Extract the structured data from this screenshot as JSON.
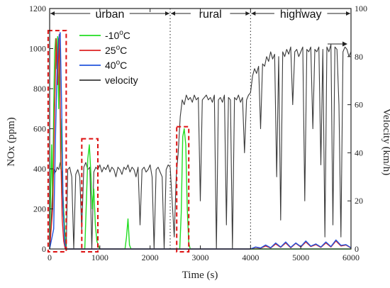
{
  "chart_data": {
    "type": "line",
    "x_axis": {
      "label": "Time (s)",
      "range": [
        0,
        6000
      ],
      "ticks": [
        0,
        1000,
        2000,
        3000,
        4000,
        5000,
        6000
      ]
    },
    "y_axis_left": {
      "label": "NOx (ppm)",
      "range": [
        0,
        1200
      ],
      "ticks": [
        0,
        200,
        400,
        600,
        800,
        1000,
        1200
      ]
    },
    "y_axis_right": {
      "label": "Velocity (km/h)",
      "range": [
        0,
        100
      ],
      "ticks": [
        0,
        20,
        40,
        60,
        80,
        100
      ]
    },
    "grid": false,
    "legend_position": "top-left",
    "segments": [
      {
        "label": "urban",
        "start": 0,
        "end": 2400
      },
      {
        "label": "rural",
        "start": 2400,
        "end": 4000
      },
      {
        "label": "highway",
        "start": 4000,
        "end": 6000
      }
    ],
    "highlight_boxes": [
      {
        "x": [
          -30,
          330
        ],
        "y": [
          0,
          1090
        ]
      },
      {
        "x": [
          640,
          960
        ],
        "y": [
          0,
          550
        ]
      },
      {
        "x": [
          2530,
          2770
        ],
        "y": [
          0,
          610
        ]
      }
    ],
    "series": [
      {
        "name": "-10oC",
        "color": "#22dd22",
        "axis": "left",
        "points": [
          [
            0,
            0
          ],
          [
            20,
            300
          ],
          [
            40,
            520
          ],
          [
            60,
            200
          ],
          [
            80,
            700
          ],
          [
            100,
            980
          ],
          [
            120,
            1050
          ],
          [
            140,
            900
          ],
          [
            160,
            1060
          ],
          [
            180,
            700
          ],
          [
            200,
            1000
          ],
          [
            220,
            400
          ],
          [
            240,
            650
          ],
          [
            260,
            300
          ],
          [
            280,
            200
          ],
          [
            300,
            100
          ],
          [
            320,
            20
          ],
          [
            340,
            0
          ],
          [
            700,
            0
          ],
          [
            720,
            150
          ],
          [
            760,
            450
          ],
          [
            790,
            520
          ],
          [
            820,
            380
          ],
          [
            850,
            200
          ],
          [
            880,
            300
          ],
          [
            910,
            120
          ],
          [
            940,
            40
          ],
          [
            980,
            10
          ],
          [
            1000,
            0
          ],
          [
            1500,
            0
          ],
          [
            1530,
            60
          ],
          [
            1560,
            150
          ],
          [
            1590,
            20
          ],
          [
            1620,
            0
          ],
          [
            2590,
            0
          ],
          [
            2620,
            180
          ],
          [
            2650,
            560
          ],
          [
            2680,
            600
          ],
          [
            2710,
            520
          ],
          [
            2740,
            200
          ],
          [
            2770,
            30
          ],
          [
            2800,
            0
          ],
          [
            6000,
            0
          ]
        ]
      },
      {
        "name": "25oC",
        "color": "#dd2222",
        "axis": "left",
        "points": [
          [
            0,
            0
          ],
          [
            60,
            200
          ],
          [
            100,
            700
          ],
          [
            130,
            1050
          ],
          [
            160,
            820
          ],
          [
            190,
            1070
          ],
          [
            220,
            500
          ],
          [
            250,
            150
          ],
          [
            280,
            40
          ],
          [
            310,
            0
          ],
          [
            4000,
            0
          ],
          [
            4100,
            8
          ],
          [
            4200,
            4
          ],
          [
            4300,
            15
          ],
          [
            4400,
            5
          ],
          [
            4500,
            25
          ],
          [
            4600,
            8
          ],
          [
            4700,
            30
          ],
          [
            4800,
            6
          ],
          [
            4900,
            28
          ],
          [
            5000,
            10
          ],
          [
            5100,
            35
          ],
          [
            5200,
            12
          ],
          [
            5300,
            22
          ],
          [
            5400,
            8
          ],
          [
            5500,
            30
          ],
          [
            5600,
            10
          ],
          [
            5700,
            40
          ],
          [
            5800,
            15
          ],
          [
            5900,
            20
          ],
          [
            6000,
            5
          ]
        ]
      },
      {
        "name": "40oC",
        "color": "#2255dd",
        "axis": "left",
        "points": [
          [
            0,
            0
          ],
          [
            80,
            100
          ],
          [
            120,
            600
          ],
          [
            150,
            900
          ],
          [
            180,
            1050
          ],
          [
            210,
            1080
          ],
          [
            240,
            700
          ],
          [
            270,
            200
          ],
          [
            300,
            30
          ],
          [
            330,
            0
          ],
          [
            4000,
            0
          ],
          [
            4100,
            10
          ],
          [
            4200,
            5
          ],
          [
            4300,
            20
          ],
          [
            4400,
            6
          ],
          [
            4500,
            30
          ],
          [
            4600,
            10
          ],
          [
            4700,
            35
          ],
          [
            4800,
            8
          ],
          [
            4900,
            30
          ],
          [
            5000,
            12
          ],
          [
            5100,
            40
          ],
          [
            5200,
            14
          ],
          [
            5300,
            25
          ],
          [
            5400,
            10
          ],
          [
            5500,
            35
          ],
          [
            5600,
            12
          ],
          [
            5700,
            45
          ],
          [
            5800,
            18
          ],
          [
            5900,
            22
          ],
          [
            6000,
            6
          ]
        ]
      },
      {
        "name": "velocity",
        "color": "#3a3a3a",
        "axis": "right",
        "points": [
          [
            0,
            0
          ],
          [
            30,
            10
          ],
          [
            60,
            28
          ],
          [
            90,
            33
          ],
          [
            120,
            32
          ],
          [
            150,
            34
          ],
          [
            180,
            33
          ],
          [
            210,
            36
          ],
          [
            240,
            32
          ],
          [
            270,
            15
          ],
          [
            300,
            5
          ],
          [
            330,
            0
          ],
          [
            360,
            33
          ],
          [
            400,
            34
          ],
          [
            440,
            30
          ],
          [
            480,
            0
          ],
          [
            520,
            31
          ],
          [
            560,
            33
          ],
          [
            600,
            30
          ],
          [
            640,
            8
          ],
          [
            680,
            34
          ],
          [
            720,
            36
          ],
          [
            760,
            33
          ],
          [
            800,
            34
          ],
          [
            840,
            0
          ],
          [
            880,
            32
          ],
          [
            920,
            34
          ],
          [
            960,
            33
          ],
          [
            1000,
            35
          ],
          [
            1040,
            32
          ],
          [
            1080,
            34
          ],
          [
            1120,
            33
          ],
          [
            1160,
            35
          ],
          [
            1200,
            32
          ],
          [
            1240,
            34
          ],
          [
            1280,
            33
          ],
          [
            1320,
            30
          ],
          [
            1360,
            34
          ],
          [
            1400,
            33
          ],
          [
            1440,
            31
          ],
          [
            1480,
            34
          ],
          [
            1520,
            33
          ],
          [
            1560,
            35
          ],
          [
            1600,
            32
          ],
          [
            1640,
            34
          ],
          [
            1680,
            33
          ],
          [
            1720,
            30
          ],
          [
            1760,
            34
          ],
          [
            1800,
            10
          ],
          [
            1840,
            33
          ],
          [
            1880,
            34
          ],
          [
            1920,
            32
          ],
          [
            1960,
            33
          ],
          [
            2000,
            35
          ],
          [
            2040,
            30
          ],
          [
            2080,
            0
          ],
          [
            2120,
            33
          ],
          [
            2160,
            34
          ],
          [
            2200,
            32
          ],
          [
            2240,
            30
          ],
          [
            2280,
            0
          ],
          [
            2320,
            33
          ],
          [
            2360,
            35
          ],
          [
            2400,
            34
          ],
          [
            2440,
            20
          ],
          [
            2480,
            5
          ],
          [
            2520,
            30
          ],
          [
            2560,
            40
          ],
          [
            2600,
            55
          ],
          [
            2640,
            62
          ],
          [
            2680,
            60
          ],
          [
            2720,
            64
          ],
          [
            2760,
            62
          ],
          [
            2800,
            63
          ],
          [
            2840,
            61
          ],
          [
            2880,
            64
          ],
          [
            2920,
            62
          ],
          [
            2960,
            63
          ],
          [
            3000,
            20
          ],
          [
            3040,
            62
          ],
          [
            3080,
            63
          ],
          [
            3120,
            64
          ],
          [
            3160,
            62
          ],
          [
            3200,
            63
          ],
          [
            3240,
            61
          ],
          [
            3280,
            64
          ],
          [
            3320,
            0
          ],
          [
            3360,
            62
          ],
          [
            3400,
            63
          ],
          [
            3440,
            61
          ],
          [
            3480,
            64
          ],
          [
            3520,
            10
          ],
          [
            3560,
            63
          ],
          [
            3600,
            62
          ],
          [
            3640,
            0
          ],
          [
            3680,
            63
          ],
          [
            3720,
            62
          ],
          [
            3760,
            64
          ],
          [
            3800,
            61
          ],
          [
            3840,
            63
          ],
          [
            3880,
            40
          ],
          [
            3920,
            62
          ],
          [
            3960,
            64
          ],
          [
            4000,
            65
          ],
          [
            4040,
            72
          ],
          [
            4080,
            75
          ],
          [
            4120,
            73
          ],
          [
            4160,
            76
          ],
          [
            4200,
            50
          ],
          [
            4240,
            77
          ],
          [
            4280,
            76
          ],
          [
            4320,
            80
          ],
          [
            4360,
            78
          ],
          [
            4400,
            82
          ],
          [
            4440,
            79
          ],
          [
            4480,
            81
          ],
          [
            4520,
            30
          ],
          [
            4560,
            80
          ],
          [
            4600,
            12
          ],
          [
            4640,
            82
          ],
          [
            4680,
            80
          ],
          [
            4720,
            83
          ],
          [
            4760,
            81
          ],
          [
            4800,
            84
          ],
          [
            4840,
            60
          ],
          [
            4880,
            82
          ],
          [
            4920,
            83
          ],
          [
            4960,
            80
          ],
          [
            5000,
            82
          ],
          [
            5040,
            84
          ],
          [
            5080,
            20
          ],
          [
            5120,
            83
          ],
          [
            5160,
            82
          ],
          [
            5200,
            84
          ],
          [
            5240,
            50
          ],
          [
            5280,
            83
          ],
          [
            5320,
            82
          ],
          [
            5360,
            84
          ],
          [
            5400,
            35
          ],
          [
            5440,
            83
          ],
          [
            5480,
            5
          ],
          [
            5520,
            84
          ],
          [
            5560,
            82
          ],
          [
            5600,
            85
          ],
          [
            5640,
            10
          ],
          [
            5680,
            84
          ],
          [
            5720,
            83
          ],
          [
            5760,
            60
          ],
          [
            5800,
            5
          ],
          [
            5840,
            82
          ],
          [
            5880,
            84
          ],
          [
            5920,
            83
          ],
          [
            5960,
            80
          ],
          [
            6000,
            82
          ]
        ]
      }
    ]
  }
}
